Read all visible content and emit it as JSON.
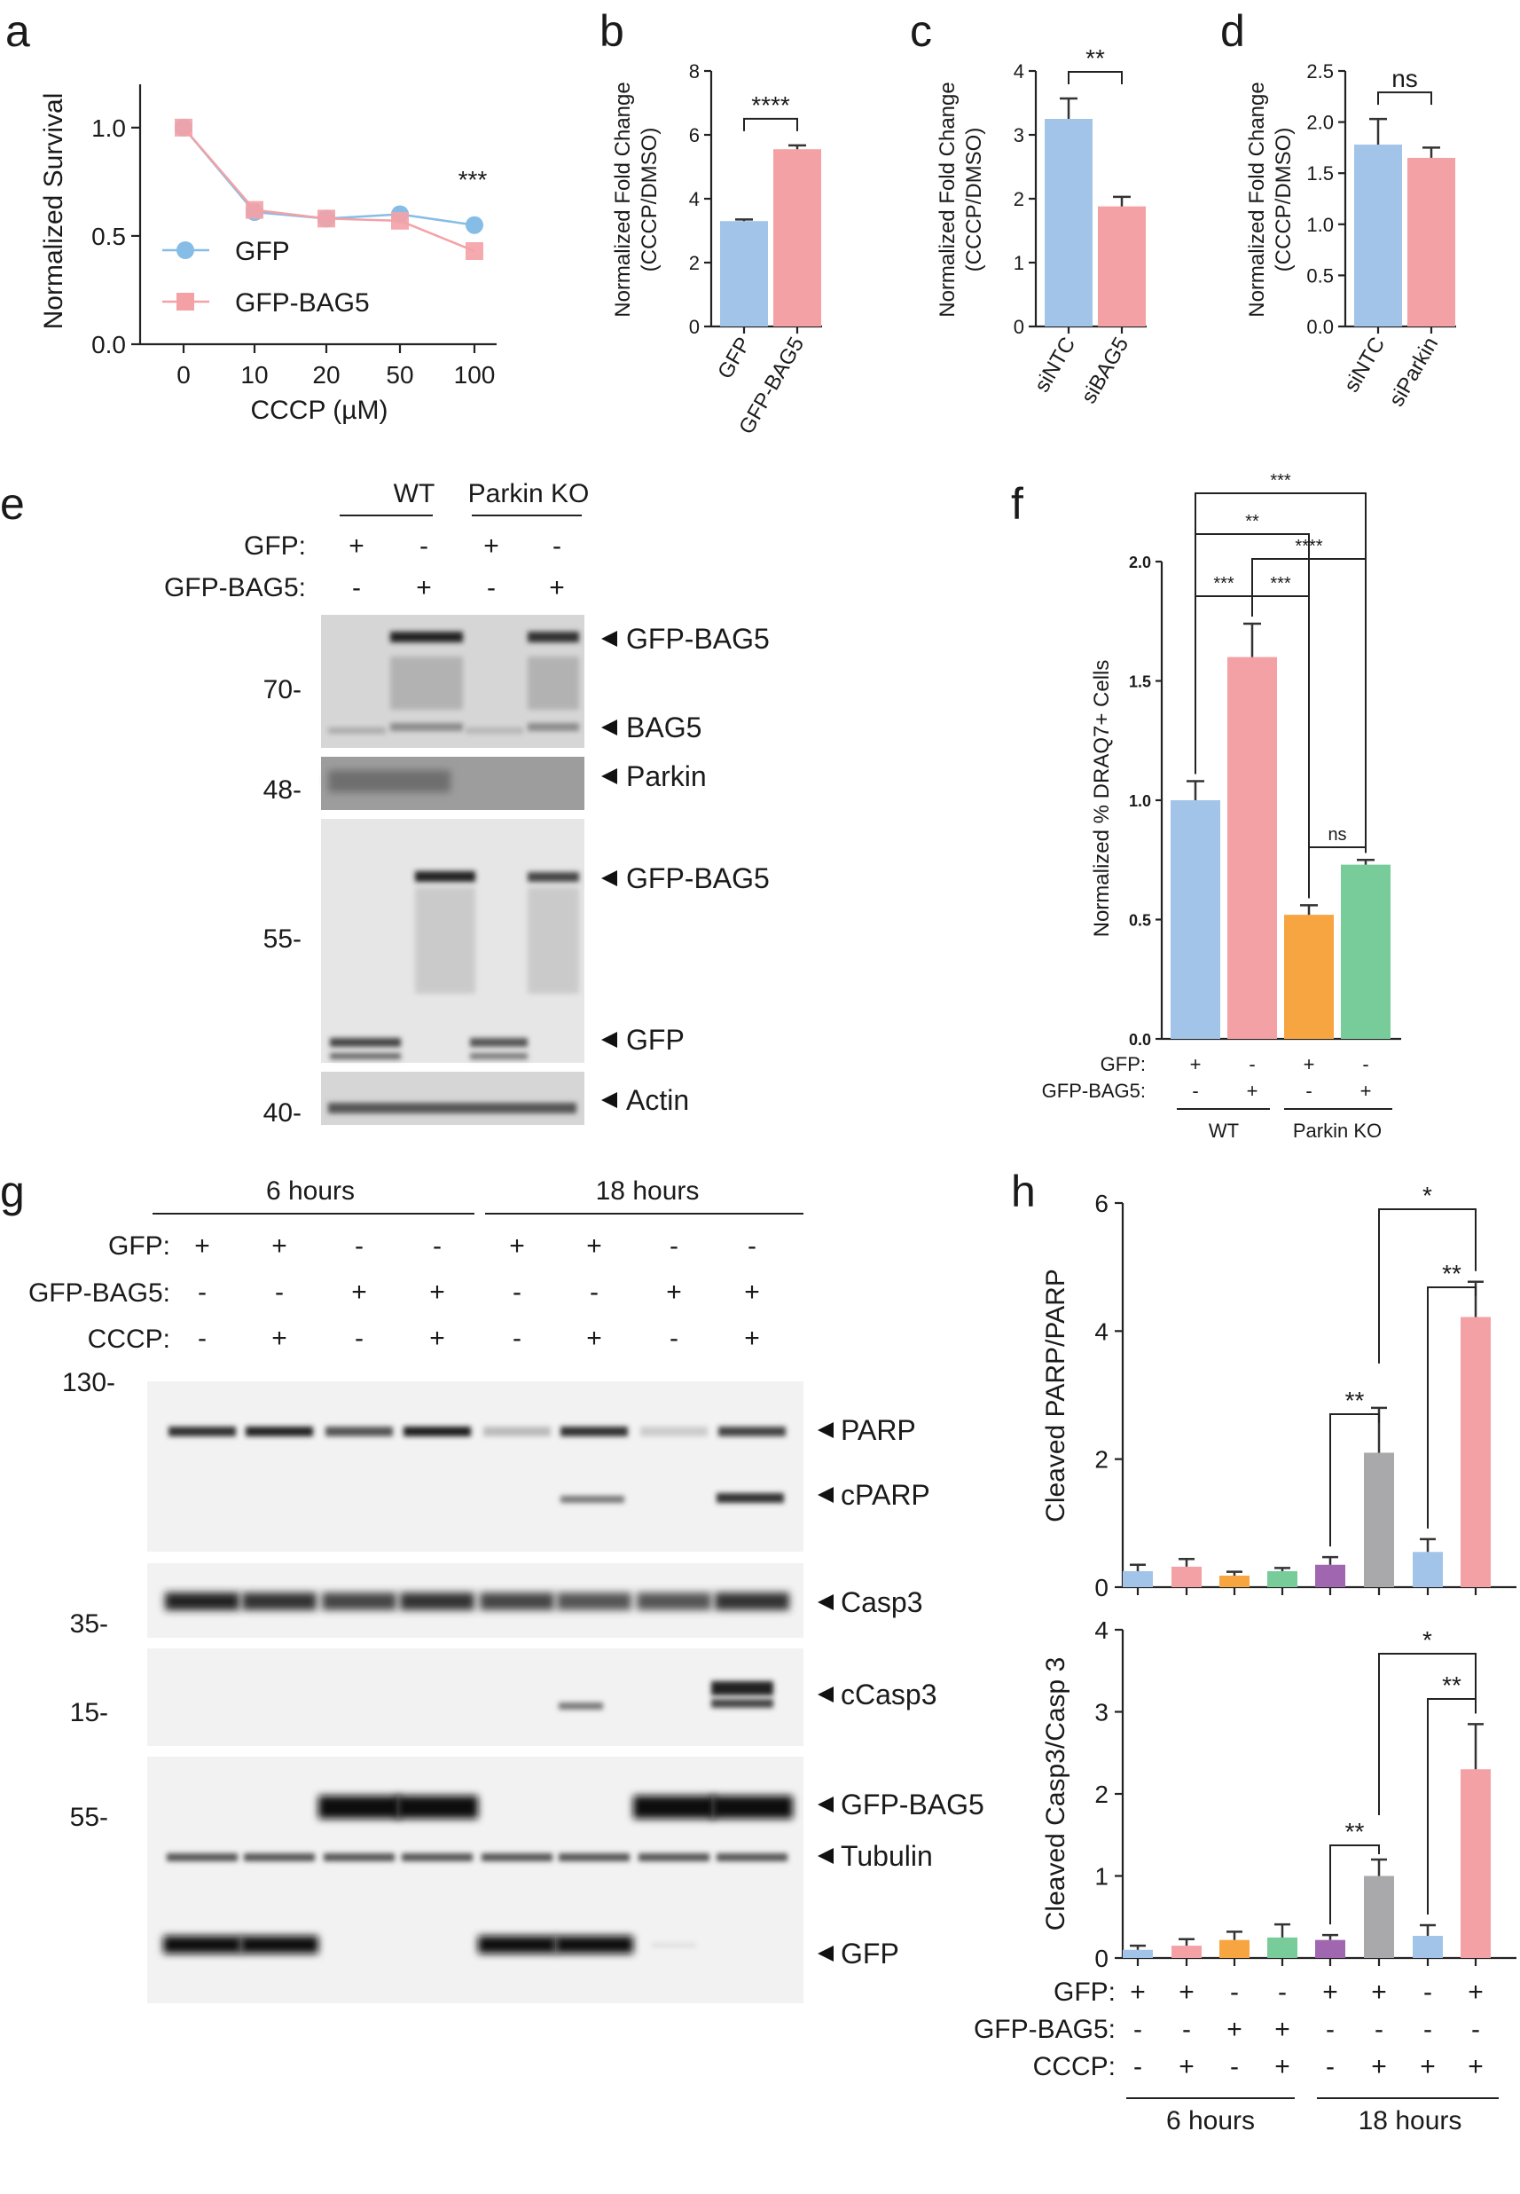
{
  "panels": [
    "a",
    "b",
    "c",
    "d",
    "e",
    "f",
    "g",
    "h"
  ],
  "colors": {
    "blue": "#a2c4e8",
    "pink": "#f4a1a6",
    "orange": "#f7a541",
    "green": "#78cc9a",
    "purple": "#a066b0",
    "gray": "#a9a9ab"
  },
  "chart_data": [
    {
      "panel": "a",
      "type": "line",
      "categories": [
        "0",
        "10",
        "20",
        "50",
        "100"
      ],
      "series": [
        {
          "name": "GFP",
          "values": [
            1.0,
            0.61,
            0.58,
            0.6,
            0.55
          ],
          "color": "#85bde6",
          "marker": "circle"
        },
        {
          "name": "GFP-BAG5",
          "values": [
            1.0,
            0.62,
            0.58,
            0.57,
            0.43
          ],
          "color": "#f4a1a6",
          "marker": "square"
        }
      ],
      "xlabel": "CCCP (µM)",
      "ylabel": "Normalized Survival",
      "ylim": [
        0,
        1.2
      ],
      "yticks": [
        "0.0",
        "0.5",
        "1.0"
      ],
      "significance": "***"
    },
    {
      "panel": "b",
      "type": "bar",
      "categories": [
        "GFP",
        "GFP-BAG5"
      ],
      "values": [
        3.3,
        5.55
      ],
      "errors": [
        0.05,
        0.12
      ],
      "ylabel": [
        "Normalized Fold Change",
        "(CCCP/DMSO)"
      ],
      "ylim": [
        0,
        8
      ],
      "yticks": [
        "0",
        "2",
        "4",
        "6",
        "8"
      ],
      "significance": "****"
    },
    {
      "panel": "c",
      "type": "bar",
      "categories": [
        "siNTC",
        "siBAG5"
      ],
      "values": [
        3.25,
        1.88
      ],
      "errors": [
        0.32,
        0.15
      ],
      "ylabel": [
        "Normalized Fold Change",
        "(CCCP/DMSO)"
      ],
      "ylim": [
        0,
        4
      ],
      "yticks": [
        "0",
        "1",
        "2",
        "3",
        "4"
      ],
      "significance": "**"
    },
    {
      "panel": "d",
      "type": "bar",
      "categories": [
        "siNTC",
        "siParkin"
      ],
      "values": [
        1.78,
        1.65
      ],
      "errors": [
        0.25,
        0.1
      ],
      "ylabel": [
        "Normalized Fold Change",
        "(CCCP/DMSO)"
      ],
      "ylim": [
        0,
        2.5
      ],
      "yticks": [
        "0.0",
        "0.5",
        "1.0",
        "1.5",
        "2.0",
        "2.5"
      ],
      "significance": "ns"
    },
    {
      "panel": "f",
      "type": "bar",
      "values": [
        1.0,
        1.6,
        0.52,
        0.73
      ],
      "errors": [
        0.08,
        0.14,
        0.04,
        0.02
      ],
      "ylabel": "Normalized % DRAQ7+ Cells",
      "ylim": [
        0,
        2.0
      ],
      "yticks": [
        "0.0",
        "0.5",
        "1.0",
        "1.5",
        "2.0"
      ],
      "rows": [
        {
          "label": "GFP:",
          "values": [
            "+",
            "-",
            "+",
            "-"
          ]
        },
        {
          "label": "GFP-BAG5:",
          "values": [
            "-",
            "+",
            "-",
            "+"
          ]
        }
      ],
      "groups": [
        "WT",
        "Parkin KO"
      ],
      "significance": [
        "***",
        "**",
        "***",
        "****",
        "***",
        "ns"
      ]
    },
    {
      "panel": "h-top",
      "type": "bar",
      "values": [
        0.25,
        0.32,
        0.18,
        0.25,
        0.35,
        2.1,
        0.55,
        4.22
      ],
      "errors": [
        0.1,
        0.12,
        0.06,
        0.05,
        0.12,
        0.7,
        0.2,
        0.55
      ],
      "ylabel": "Cleaved PARP/PARP",
      "ylim": [
        0,
        6
      ],
      "yticks": [
        "0",
        "2",
        "4",
        "6"
      ],
      "significance": [
        "**",
        "**",
        "*"
      ]
    },
    {
      "panel": "h-bottom",
      "type": "bar",
      "values": [
        0.1,
        0.15,
        0.22,
        0.25,
        0.22,
        1.0,
        0.27,
        2.3
      ],
      "errors": [
        0.05,
        0.08,
        0.1,
        0.16,
        0.06,
        0.2,
        0.13,
        0.55
      ],
      "ylabel": "Cleaved Casp3/Casp 3",
      "ylim": [
        0,
        4
      ],
      "yticks": [
        "0",
        "1",
        "2",
        "3",
        "4"
      ],
      "rows": [
        {
          "label": "GFP:",
          "values": [
            "+",
            "+",
            "-",
            "-",
            "+",
            "+",
            "-",
            "+"
          ]
        },
        {
          "label": "GFP-BAG5:",
          "values": [
            "-",
            "-",
            "+",
            "+",
            "-",
            "-",
            "-",
            "-"
          ]
        },
        {
          "label": "CCCP:",
          "values": [
            "-",
            "+",
            "-",
            "+",
            "-",
            "+",
            "+",
            "+"
          ]
        }
      ],
      "groups": [
        "6 hours",
        "18 hours"
      ],
      "significance": [
        "**",
        "**",
        "*"
      ]
    }
  ],
  "blot_e": {
    "groups": [
      "WT",
      "Parkin KO"
    ],
    "rows": [
      {
        "label": "GFP:",
        "values": [
          "+",
          "-",
          "+",
          "-"
        ]
      },
      {
        "label": "GFP-BAG5:",
        "values": [
          "-",
          "+",
          "-",
          "+"
        ]
      }
    ],
    "mw": [
      "70-",
      "48-",
      "55-",
      "40-"
    ],
    "bands": [
      "GFP-BAG5",
      "BAG5",
      "Parkin",
      "GFP-BAG5",
      "GFP",
      "Actin"
    ]
  },
  "blot_g": {
    "groups": [
      "6 hours",
      "18 hours"
    ],
    "rows": [
      {
        "label": "GFP:",
        "values": [
          "+",
          "+",
          "-",
          "-",
          "+",
          "+",
          "-",
          "-"
        ]
      },
      {
        "label": "GFP-BAG5:",
        "values": [
          "-",
          "-",
          "+",
          "+",
          "-",
          "-",
          "+",
          "+"
        ]
      },
      {
        "label": "CCCP:",
        "values": [
          "-",
          "+",
          "-",
          "+",
          "-",
          "+",
          "-",
          "+"
        ]
      }
    ],
    "mw": [
      "130-",
      "35-",
      "15-",
      "55-"
    ],
    "bands": [
      "PARP",
      "cPARP",
      "Casp3",
      "cCasp3",
      "GFP-BAG5",
      "Tubulin",
      "GFP"
    ]
  }
}
